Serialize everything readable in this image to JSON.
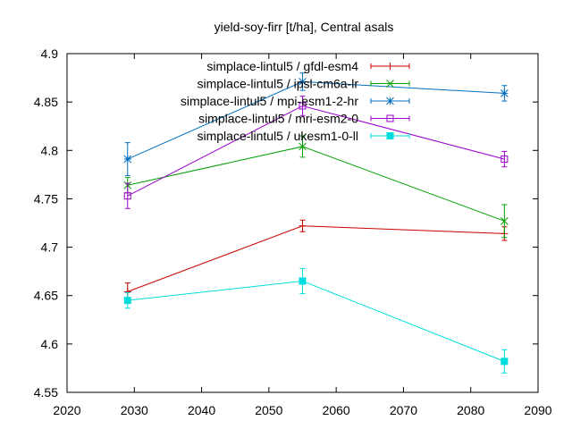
{
  "chart_data": {
    "type": "line",
    "title": "yield-soy-firr [t/ha], Central asals",
    "xlabel": "",
    "ylabel": "",
    "xlim": [
      2020,
      2090
    ],
    "ylim": [
      4.55,
      4.9
    ],
    "x_ticks": [
      2020,
      2030,
      2040,
      2050,
      2060,
      2070,
      2080,
      2090
    ],
    "y_ticks": [
      4.55,
      4.6,
      4.65,
      4.7,
      4.75,
      4.8,
      4.85,
      4.9
    ],
    "x_tick_labels": [
      "2020",
      "2030",
      "2040",
      "2050",
      "2060",
      "2070",
      "2080",
      "2090"
    ],
    "y_tick_labels": [
      "4.55",
      "4.6",
      "4.65",
      "4.7",
      "4.75",
      "4.8",
      "4.85",
      "4.9"
    ],
    "grid": false,
    "legend_position": "top-right",
    "series": [
      {
        "name": "simplace-lintul5 / gfdl-esm4",
        "color": "#cc0000",
        "marker": "plus",
        "x": [
          2029,
          2055,
          2085
        ],
        "y": [
          4.654,
          4.722,
          4.714
        ],
        "err": [
          0.009,
          0.006,
          0.007
        ]
      },
      {
        "name": "simplace-lintul5 / ipsl-cm6a-lr",
        "color": "#00a000",
        "marker": "cross",
        "x": [
          2029,
          2055,
          2085
        ],
        "y": [
          4.764,
          4.804,
          4.727
        ],
        "err": [
          0.008,
          0.011,
          0.017
        ]
      },
      {
        "name": "simplace-lintul5 / mpi-esm1-2-hr",
        "color": "#0070c0",
        "marker": "star",
        "x": [
          2029,
          2055,
          2085
        ],
        "y": [
          4.791,
          4.871,
          4.859
        ],
        "err": [
          0.017,
          0.009,
          0.008
        ]
      },
      {
        "name": "simplace-lintul5 / mri-esm2-0",
        "color": "#9900cc",
        "marker": "open-square",
        "x": [
          2029,
          2055,
          2085
        ],
        "y": [
          4.753,
          4.846,
          4.791
        ],
        "err": [
          0.013,
          0.01,
          0.008
        ]
      },
      {
        "name": "simplace-lintul5 / ukesm1-0-ll",
        "color": "#00dddd",
        "marker": "filled-square",
        "x": [
          2029,
          2055,
          2085
        ],
        "y": [
          4.645,
          4.665,
          4.582
        ],
        "err": [
          0.008,
          0.013,
          0.012
        ]
      }
    ]
  }
}
